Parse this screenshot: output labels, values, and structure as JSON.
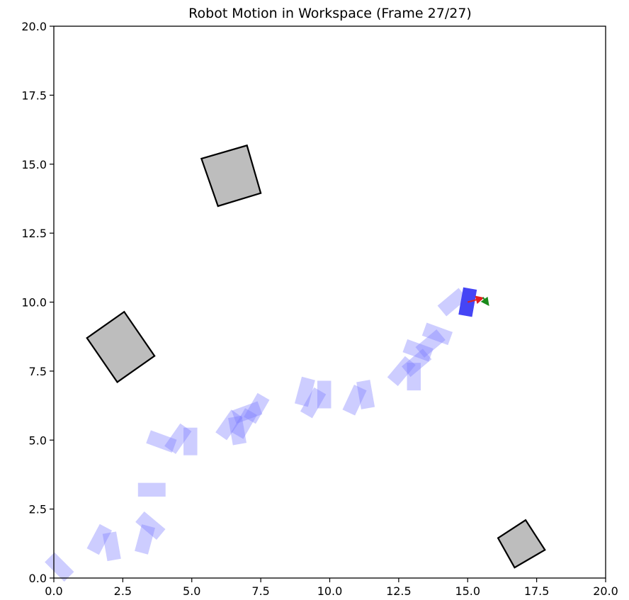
{
  "chart_data": {
    "type": "scatter",
    "title": "Robot Motion in Workspace (Frame 27/27)",
    "xlabel": "",
    "ylabel": "",
    "xlim": [
      0,
      20
    ],
    "ylim": [
      0,
      20
    ],
    "xticks": [
      "0.0",
      "2.5",
      "5.0",
      "7.5",
      "10.0",
      "12.5",
      "15.0",
      "17.5",
      "20.0"
    ],
    "yticks": [
      "0.0",
      "2.5",
      "5.0",
      "7.5",
      "10.0",
      "12.5",
      "15.0",
      "17.5",
      "20.0"
    ],
    "grid": false,
    "colors": {
      "obstacle_fill": "#bdbdbd",
      "obstacle_edge": "#000000",
      "trail": "#7b7bff",
      "trail_opacity": 0.38,
      "robot": "#4545f5",
      "heading_x": "#e02020",
      "heading_y": "#1a8a1a"
    },
    "obstacles": [
      {
        "corners": [
          [
            5.35,
            15.2
          ],
          [
            7.0,
            15.68
          ],
          [
            7.5,
            13.95
          ],
          [
            5.95,
            13.48
          ]
        ]
      },
      {
        "corners": [
          [
            1.2,
            8.7
          ],
          [
            2.55,
            9.65
          ],
          [
            3.65,
            8.05
          ],
          [
            2.3,
            7.1
          ]
        ]
      },
      {
        "corners": [
          [
            16.1,
            1.45
          ],
          [
            17.1,
            2.1
          ],
          [
            17.8,
            1.02
          ],
          [
            16.7,
            0.38
          ]
        ]
      }
    ],
    "trail_poses": [
      {
        "x": 0.2,
        "y": 0.4,
        "theta": -45
      },
      {
        "x": 1.65,
        "y": 1.4,
        "theta": 62
      },
      {
        "x": 2.1,
        "y": 1.15,
        "theta": -80
      },
      {
        "x": 3.3,
        "y": 1.4,
        "theta": 75
      },
      {
        "x": 3.5,
        "y": 1.9,
        "theta": -40
      },
      {
        "x": 3.55,
        "y": 3.2,
        "theta": 0
      },
      {
        "x": 3.9,
        "y": 4.95,
        "theta": -20
      },
      {
        "x": 4.5,
        "y": 5.05,
        "theta": 55
      },
      {
        "x": 4.95,
        "y": 4.95,
        "theta": -90
      },
      {
        "x": 6.35,
        "y": 5.55,
        "theta": 55
      },
      {
        "x": 6.65,
        "y": 5.35,
        "theta": -80
      },
      {
        "x": 6.9,
        "y": 5.6,
        "theta": 60
      },
      {
        "x": 7.0,
        "y": 6.0,
        "theta": 20
      },
      {
        "x": 7.35,
        "y": 6.15,
        "theta": 60
      },
      {
        "x": 9.1,
        "y": 6.75,
        "theta": 75
      },
      {
        "x": 9.4,
        "y": 6.35,
        "theta": 60
      },
      {
        "x": 9.8,
        "y": 6.65,
        "theta": -90
      },
      {
        "x": 10.9,
        "y": 6.45,
        "theta": 65
      },
      {
        "x": 11.3,
        "y": 6.65,
        "theta": -80
      },
      {
        "x": 12.6,
        "y": 7.5,
        "theta": 50
      },
      {
        "x": 13.05,
        "y": 7.3,
        "theta": -90
      },
      {
        "x": 13.15,
        "y": 7.8,
        "theta": 40
      },
      {
        "x": 13.2,
        "y": 8.25,
        "theta": -20
      },
      {
        "x": 13.65,
        "y": 8.5,
        "theta": 40
      },
      {
        "x": 13.9,
        "y": 8.85,
        "theta": -20
      },
      {
        "x": 14.45,
        "y": 10.0,
        "theta": 40
      }
    ],
    "robot_pose": {
      "x": 15.0,
      "y": 10.0,
      "theta": 80
    },
    "heading_axes": {
      "x_axis_end": [
        15.55,
        10.15
      ],
      "y_axis_end": [
        15.75,
        9.9
      ]
    }
  }
}
